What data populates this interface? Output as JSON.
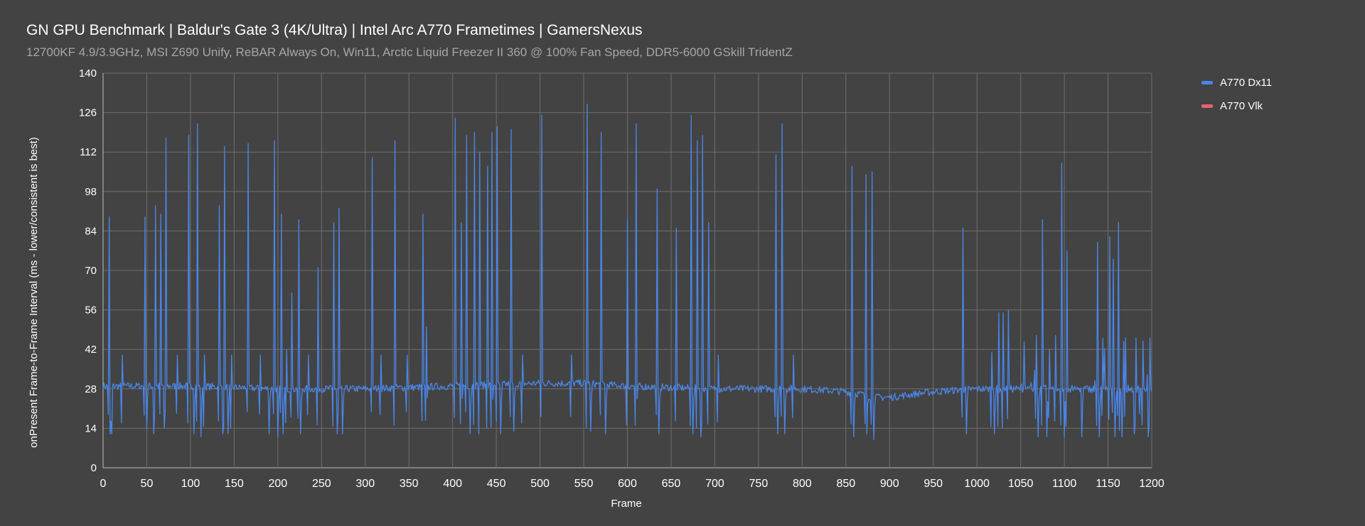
{
  "chart_data": {
    "type": "line",
    "title": "GN GPU Benchmark | Baldur's Gate 3 (4K/Ultra) | Intel Arc A770 Frametimes | GamersNexus",
    "subtitle": "12700KF 4.9/3.9GHz, MSI Z690 Unify, ReBAR Always On, Win11, Arctic Liquid Freezer II 360 @ 100% Fan Speed, DDR5-6000 GSkill TridentZ",
    "xlabel": "Frame",
    "ylabel": "onPresent Frame-to-Frame Interval (ms - lower/consistent is best)",
    "xlim": [
      0,
      1200
    ],
    "ylim": [
      0,
      140
    ],
    "x_ticks": [
      0,
      50,
      100,
      150,
      200,
      250,
      300,
      350,
      400,
      450,
      500,
      550,
      600,
      650,
      700,
      750,
      800,
      850,
      900,
      950,
      1000,
      1050,
      1100,
      1150,
      1200
    ],
    "y_ticks": [
      0,
      14,
      28,
      42,
      56,
      70,
      84,
      98,
      112,
      126,
      140
    ],
    "grid": true,
    "legend_position": "right",
    "series": [
      {
        "name": "A770 Dx11",
        "color": "#4a86e8",
        "baseline": [
          [
            0,
            29
          ],
          [
            100,
            29
          ],
          [
            200,
            28
          ],
          [
            300,
            28
          ],
          [
            400,
            29
          ],
          [
            500,
            30
          ],
          [
            550,
            30
          ],
          [
            600,
            29
          ],
          [
            700,
            28
          ],
          [
            800,
            28
          ],
          [
            850,
            27
          ],
          [
            870,
            26
          ],
          [
            880,
            25
          ],
          [
            900,
            25
          ],
          [
            950,
            27
          ],
          [
            1000,
            28
          ],
          [
            1050,
            28
          ],
          [
            1100,
            28
          ],
          [
            1150,
            28
          ],
          [
            1200,
            28
          ]
        ],
        "spikes": [
          [
            7,
            89
          ],
          [
            10,
            12
          ],
          [
            22,
            40
          ],
          [
            48,
            89
          ],
          [
            60,
            93
          ],
          [
            66,
            90
          ],
          [
            72,
            117
          ],
          [
            85,
            40
          ],
          [
            98,
            118
          ],
          [
            108,
            122
          ],
          [
            116,
            40
          ],
          [
            133,
            93
          ],
          [
            139,
            114
          ],
          [
            147,
            40
          ],
          [
            166,
            115
          ],
          [
            180,
            40
          ],
          [
            196,
            116
          ],
          [
            204,
            90
          ],
          [
            210,
            42
          ],
          [
            216,
            62
          ],
          [
            224,
            88
          ],
          [
            235,
            40
          ],
          [
            246,
            71
          ],
          [
            264,
            87
          ],
          [
            270,
            92
          ],
          [
            308,
            110
          ],
          [
            318,
            40
          ],
          [
            334,
            116
          ],
          [
            348,
            40
          ],
          [
            366,
            90
          ],
          [
            370,
            50
          ],
          [
            403,
            124
          ],
          [
            410,
            87
          ],
          [
            416,
            118
          ],
          [
            425,
            119
          ],
          [
            431,
            112
          ],
          [
            440,
            107
          ],
          [
            445,
            119
          ],
          [
            451,
            121
          ],
          [
            467,
            120
          ],
          [
            480,
            40
          ],
          [
            502,
            125
          ],
          [
            536,
            40
          ],
          [
            554,
            129
          ],
          [
            570,
            119
          ],
          [
            600,
            88
          ],
          [
            610,
            122
          ],
          [
            634,
            99
          ],
          [
            656,
            85
          ],
          [
            673,
            125
          ],
          [
            680,
            116
          ],
          [
            686,
            118
          ],
          [
            693,
            87
          ],
          [
            704,
            40
          ],
          [
            770,
            111
          ],
          [
            777,
            122
          ],
          [
            790,
            40
          ],
          [
            857,
            107
          ],
          [
            873,
            104
          ],
          [
            880,
            105
          ],
          [
            984,
            85
          ],
          [
            1017,
            41
          ],
          [
            1025,
            55
          ],
          [
            1030,
            55
          ],
          [
            1036,
            56
          ],
          [
            1068,
            47
          ],
          [
            1075,
            88
          ],
          [
            1083,
            42
          ],
          [
            1090,
            47
          ],
          [
            1097,
            108
          ],
          [
            1103,
            77
          ],
          [
            1138,
            80
          ],
          [
            1144,
            46
          ],
          [
            1152,
            82
          ],
          [
            1156,
            74
          ],
          [
            1162,
            87
          ],
          [
            1170,
            46
          ],
          [
            1182,
            46
          ],
          [
            1190,
            45
          ],
          [
            1198,
            46
          ]
        ],
        "dips": [
          [
            8,
            12
          ],
          [
            50,
            14
          ],
          [
            58,
            12
          ],
          [
            70,
            14
          ],
          [
            104,
            12
          ],
          [
            112,
            11
          ],
          [
            137,
            12
          ],
          [
            143,
            12
          ],
          [
            190,
            12
          ],
          [
            200,
            11
          ],
          [
            206,
            12
          ],
          [
            226,
            12
          ],
          [
            268,
            12
          ],
          [
            274,
            12
          ],
          [
            370,
            13
          ],
          [
            410,
            12
          ],
          [
            420,
            12
          ],
          [
            430,
            12
          ],
          [
            445,
            11
          ],
          [
            455,
            12
          ],
          [
            470,
            13
          ],
          [
            558,
            13
          ],
          [
            575,
            12
          ],
          [
            610,
            12
          ],
          [
            636,
            12
          ],
          [
            675,
            12
          ],
          [
            684,
            11
          ],
          [
            772,
            12
          ],
          [
            780,
            12
          ],
          [
            859,
            11
          ],
          [
            874,
            12
          ],
          [
            882,
            10
          ],
          [
            988,
            12
          ],
          [
            1020,
            12
          ],
          [
            1070,
            11
          ],
          [
            1080,
            11
          ],
          [
            1100,
            11
          ],
          [
            1120,
            11
          ],
          [
            1140,
            11
          ],
          [
            1158,
            11
          ],
          [
            1166,
            11
          ],
          [
            1180,
            12
          ],
          [
            1196,
            11
          ]
        ]
      },
      {
        "name": "A770 Vlk",
        "color": "#e06666",
        "values": []
      }
    ]
  }
}
